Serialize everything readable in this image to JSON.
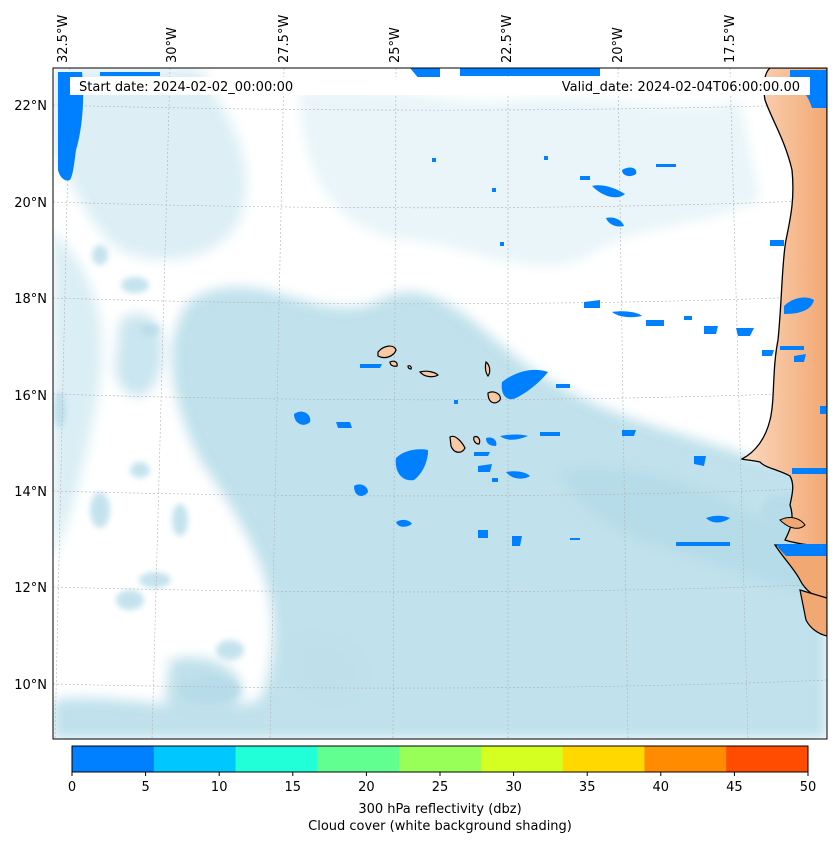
{
  "header": {
    "start_date_text": "Start date: 2024-02-02_00:00:00",
    "valid_date_text": "Valid_date: 2024-02-04T06:00:00.00"
  },
  "axes": {
    "lon_labels": [
      "32.5°W",
      "30°W",
      "27.5°W",
      "25°W",
      "22.5°W",
      "20°W",
      "17.5°W"
    ],
    "lat_labels": [
      "22°N",
      "20°N",
      "18°N",
      "16°N",
      "14°N",
      "12°N",
      "10°N"
    ]
  },
  "colorbar": {
    "ticks": [
      "0",
      "5",
      "10",
      "15",
      "20",
      "25",
      "30",
      "35",
      "40",
      "45",
      "50"
    ],
    "colors": [
      "#0080ff",
      "#00c8ff",
      "#20ffd8",
      "#60ff90",
      "#98ff58",
      "#d4ff20",
      "#ffd800",
      "#ff8c00",
      "#ff4c00"
    ],
    "title_line1": "300 hPa reflectivity (dbz)",
    "title_line2": "Cloud cover (white background shading)"
  },
  "colors": {
    "reflectivity_low": "#0080ff",
    "cloud_cover": "#add8e6",
    "land": "#f5b98f",
    "land_light": "#fbd9c0",
    "coast": "#000000"
  }
}
